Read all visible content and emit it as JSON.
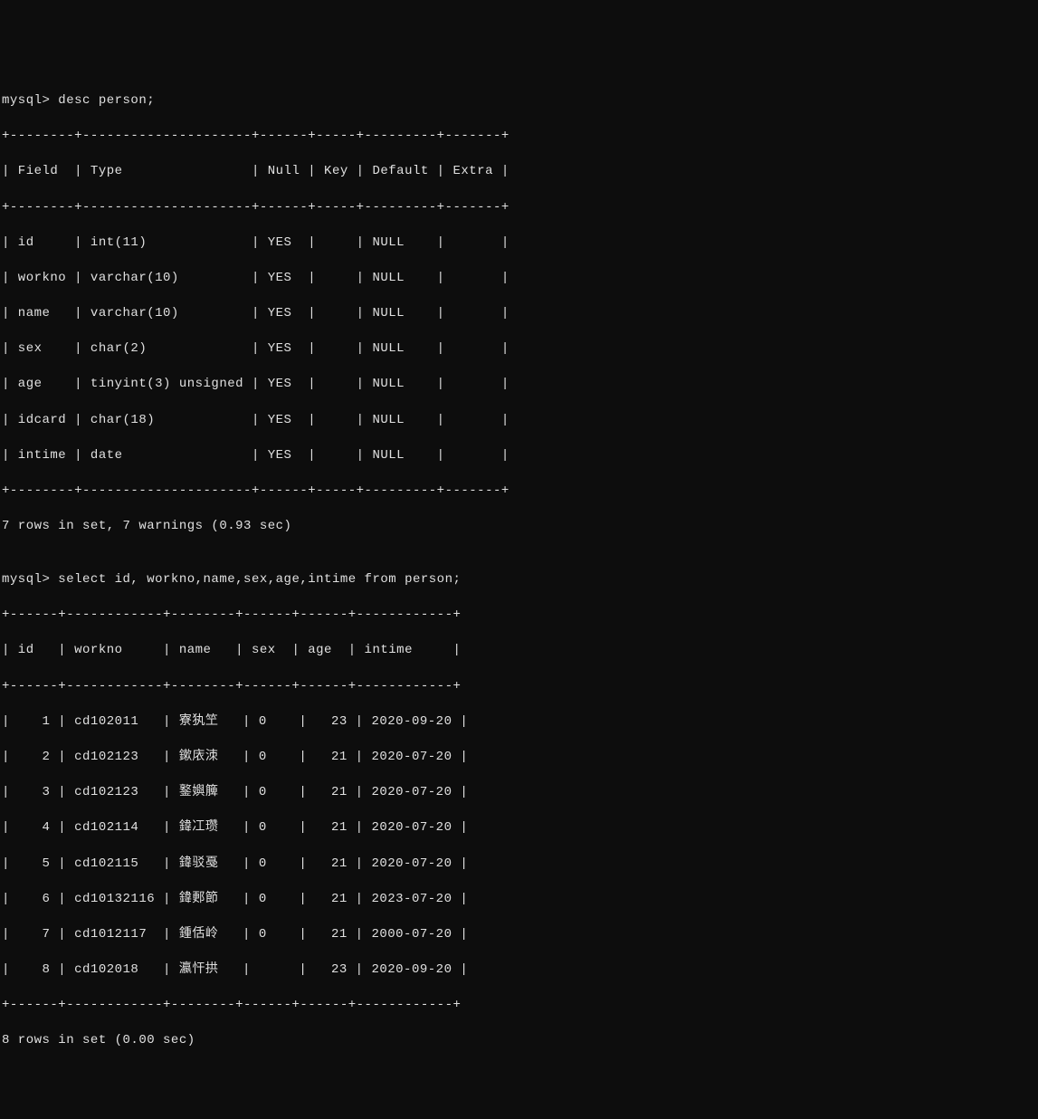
{
  "prompt1": "mysql> desc person;",
  "desc_border_top": "+--------+---------------------+------+-----+---------+-------+",
  "desc_header": "| Field  | Type                | Null | Key | Default | Extra |",
  "desc_border_mid": "+--------+---------------------+------+-----+---------+-------+",
  "desc_rows": [
    "| id     | int(11)             | YES  |     | NULL    |       |",
    "| workno | varchar(10)         | YES  |     | NULL    |       |",
    "| name   | varchar(10)         | YES  |     | NULL    |       |",
    "| sex    | char(2)             | YES  |     | NULL    |       |",
    "| age    | tinyint(3) unsigned | YES  |     | NULL    |       |",
    "| idcard | char(18)            | YES  |     | NULL    |       |",
    "| intime | date                | YES  |     | NULL    |       |"
  ],
  "desc_border_bot": "+--------+---------------------+------+-----+---------+-------+",
  "status1": "7 rows in set, 7 warnings (0.93 sec)",
  "blank": "",
  "prompt2": "mysql> select id, workno,name,sex,age,intime from person;",
  "sel_border_top": "+------+------------+--------+------+------+------------+",
  "sel_header": "| id   | workno     | name   | sex  | age  | intime     |",
  "sel_border_mid": "+------+------------+--------+------+------+------------+",
  "sel_rows": [
    "|    1 | cd102011   | 寮犱笁   | 0    |   23 | 2020-09-20 |",
    "|    2 | cd102123   | 鏉庡洓   | 0    |   21 | 2020-07-20 |",
    "|    3 | cd102123   | 鐜嬩簲   | 0    |   21 | 2020-07-20 |",
    "|    4 | cd102114   | 鍏冮瓒   | 0    |   21 | 2020-07-20 |",
    "|    5 | cd102115   | 鍏驳戞   | 0    |   21 | 2020-07-20 |",
    "|    6 | cd10132116 | 鍏郠節   | 0    |   21 | 2023-07-20 |",
    "|    7 | cd1012117  | 鍾佸岭   | 0    |   21 | 2000-07-20 |",
    "|    8 | cd102018   | 瀛忓拱   |      |   23 | 2020-09-20 |"
  ],
  "sel_border_bot": "+------+------------+--------+------+------+------------+",
  "status2": "8 rows in set (0.00 sec)",
  "colors": {
    "background": "#0d0d0d",
    "foreground": "#e0e0e0"
  }
}
